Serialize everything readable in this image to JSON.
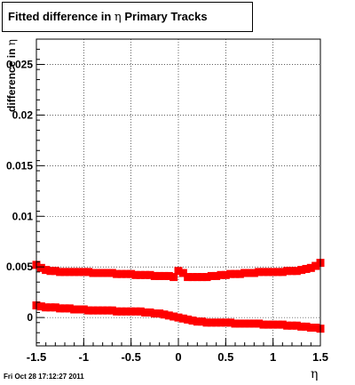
{
  "header": {
    "title_prefix": "Fitted difference in",
    "title_symbol": "η",
    "title_suffix": "Primary Tracks"
  },
  "footer": {
    "timestamp": "Fri Oct 28 17:12:27 2011"
  },
  "axes": {
    "ylabel_prefix": "difference in",
    "ylabel_symbol": "η",
    "xlabel": "η"
  },
  "colors": {
    "markers": "#ff0000",
    "frame": "#000000",
    "grid": "#000000"
  },
  "chart_data": {
    "type": "scatter",
    "title": "Fitted difference in η Primary Tracks",
    "xlabel": "η",
    "ylabel": "difference in η",
    "xlim": [
      -1.5,
      1.5
    ],
    "ylim": [
      -0.0028,
      0.0275
    ],
    "grid": true,
    "x_ticks": [
      "-1.5",
      "-1",
      "-0.5",
      "0",
      "0.5",
      "1",
      "1.5"
    ],
    "y_ticks": [
      "0",
      "0.005",
      "0.01",
      "0.015",
      "0.02",
      "0.025"
    ],
    "series": [
      {
        "x": [
          -1.5,
          -1.45,
          -1.4,
          -1.35,
          -1.3,
          -1.25,
          -1.2,
          -1.15,
          -1.1,
          -1.05,
          -1.0,
          -0.95,
          -0.9,
          -0.85,
          -0.8,
          -0.75,
          -0.7,
          -0.65,
          -0.6,
          -0.55,
          -0.5,
          -0.45,
          -0.4,
          -0.35,
          -0.3,
          -0.25,
          -0.2,
          -0.15,
          -0.1,
          -0.05,
          0.0,
          0.05,
          0.1,
          0.15,
          0.2,
          0.25,
          0.3,
          0.35,
          0.4,
          0.45,
          0.5,
          0.55,
          0.6,
          0.65,
          0.7,
          0.75,
          0.8,
          0.85,
          0.9,
          0.95,
          1.0,
          1.05,
          1.1,
          1.15,
          1.2,
          1.25,
          1.3,
          1.35,
          1.4,
          1.45,
          1.5
        ],
        "y": [
          0.0052,
          0.0049,
          0.0047,
          0.0046,
          0.0046,
          0.0045,
          0.0045,
          0.0045,
          0.0045,
          0.0045,
          0.0045,
          0.0045,
          0.0044,
          0.0044,
          0.0044,
          0.0044,
          0.0044,
          0.0043,
          0.0043,
          0.0043,
          0.0043,
          0.0042,
          0.0042,
          0.0042,
          0.0042,
          0.0041,
          0.0041,
          0.0041,
          0.0041,
          0.004,
          0.0046,
          0.0044,
          0.004,
          0.004,
          0.004,
          0.004,
          0.004,
          0.0041,
          0.0041,
          0.0042,
          0.0042,
          0.0043,
          0.0043,
          0.0043,
          0.0044,
          0.0044,
          0.0044,
          0.0045,
          0.0045,
          0.0045,
          0.0045,
          0.0045,
          0.0045,
          0.0046,
          0.0046,
          0.0046,
          0.0047,
          0.0048,
          0.0049,
          0.0051,
          0.0054
        ]
      },
      {
        "x": [
          -1.5,
          -1.45,
          -1.4,
          -1.35,
          -1.3,
          -1.25,
          -1.2,
          -1.15,
          -1.1,
          -1.05,
          -1.0,
          -0.95,
          -0.9,
          -0.85,
          -0.8,
          -0.75,
          -0.7,
          -0.65,
          -0.6,
          -0.55,
          -0.5,
          -0.45,
          -0.4,
          -0.35,
          -0.3,
          -0.25,
          -0.2,
          -0.15,
          -0.1,
          -0.05,
          0.0,
          0.05,
          0.1,
          0.15,
          0.2,
          0.25,
          0.3,
          0.35,
          0.4,
          0.45,
          0.5,
          0.55,
          0.6,
          0.65,
          0.7,
          0.75,
          0.8,
          0.85,
          0.9,
          0.95,
          1.0,
          1.05,
          1.1,
          1.15,
          1.2,
          1.25,
          1.3,
          1.35,
          1.4,
          1.45,
          1.5
        ],
        "y": [
          0.0012,
          0.0011,
          0.001,
          0.001,
          0.001,
          0.0009,
          0.0009,
          0.0009,
          0.0008,
          0.0008,
          0.0008,
          0.0007,
          0.0007,
          0.0007,
          0.0007,
          0.0007,
          0.0007,
          0.0006,
          0.0006,
          0.0006,
          0.0006,
          0.0006,
          0.0006,
          0.0005,
          0.0005,
          0.0004,
          0.0004,
          0.0003,
          0.0002,
          0.0001,
          0.0,
          -0.0001,
          -0.0002,
          -0.0003,
          -0.0004,
          -0.0004,
          -0.0005,
          -0.0005,
          -0.0005,
          -0.0005,
          -0.0005,
          -0.0005,
          -0.0006,
          -0.0006,
          -0.0006,
          -0.0006,
          -0.0006,
          -0.0006,
          -0.0007,
          -0.0007,
          -0.0007,
          -0.0007,
          -0.0007,
          -0.0008,
          -0.0008,
          -0.0008,
          -0.0009,
          -0.0009,
          -0.001,
          -0.001,
          -0.0011
        ]
      }
    ]
  }
}
